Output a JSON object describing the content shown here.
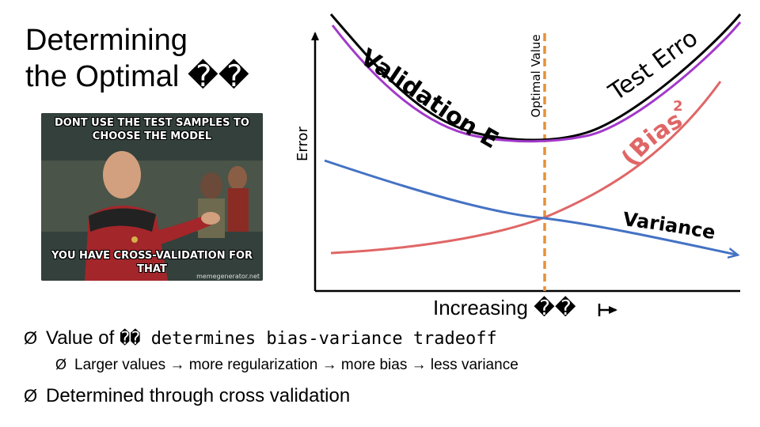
{
  "title": {
    "line1": "Determining",
    "line2": "the Optimal ��"
  },
  "meme": {
    "top_text": "DONT USE THE TEST SAMPLES TO CHOOSE THE MODEL",
    "bottom_text": "YOU HAVE CROSS-VALIDATION FOR THAT",
    "watermark": "memegenerator.net"
  },
  "diagram": {
    "y_axis_label": "Error",
    "x_axis_label": "Increasing ��",
    "optimal_label": "Optimal Value",
    "curves": {
      "validation": "Validation Error",
      "test": "Test Error",
      "bias": "(Bias)",
      "bias_exponent": "2",
      "variance": "Variance"
    },
    "colors": {
      "test_curve": "#000000",
      "validation_curve": "#a239ca",
      "bias_curve": "#e06666",
      "variance_curve": "#4472c4",
      "optimal_line": "#e69138"
    }
  },
  "bullets": [
    {
      "marker": "Ø",
      "prefix": "Value of ",
      "symbol": "�� determines bias-variance tradeoff"
    },
    {
      "marker": "Ø",
      "parts": [
        "Larger values",
        "more regularization",
        "more bias",
        "less variance"
      ]
    },
    {
      "marker": "Ø",
      "text": "Determined through cross validation"
    }
  ]
}
